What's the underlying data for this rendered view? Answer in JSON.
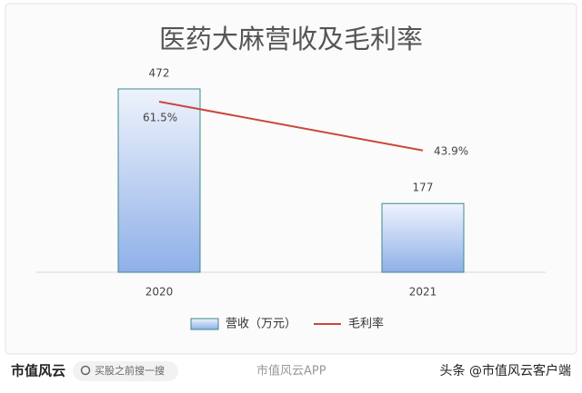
{
  "chart_data": {
    "type": "combo",
    "title": "医药大麻营收及毛利率",
    "categories": [
      "2020",
      "2021"
    ],
    "series": [
      {
        "name": "营收（万元）",
        "type": "bar",
        "color": "#8fb0e8",
        "values": [
          472,
          177
        ]
      },
      {
        "name": "毛利率",
        "type": "line",
        "axis": "y2",
        "color": "#c9473c",
        "values": [
          61.5,
          43.9
        ],
        "value_labels": [
          "61.5%",
          "43.9%"
        ]
      }
    ],
    "ylim": [
      0,
      500
    ],
    "y2lim": [
      0,
      70
    ],
    "grid": false,
    "legend": "bottom"
  },
  "footer": {
    "brand": "市值风云",
    "search": "买股之前搜一搜",
    "app": "市值风云APP",
    "source": "头条 @市值风云客户端"
  }
}
